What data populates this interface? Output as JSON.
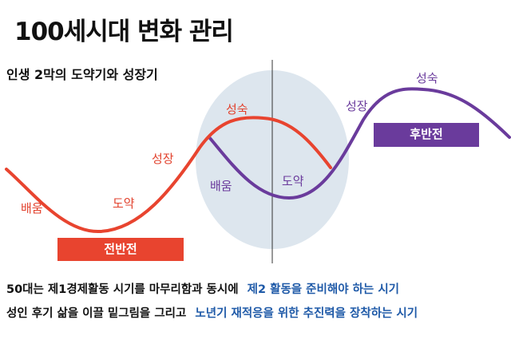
{
  "title": "100세시대 변화 관리",
  "subtitle": "인생 2막의 도약기와 성장기",
  "badges": {
    "early": "전반전",
    "late": "후반전"
  },
  "stages": {
    "red_learning": "배움",
    "red_leap": "도약",
    "red_growth": "성장",
    "red_maturity": "성숙",
    "purple_learning": "배움",
    "purple_leap": "도약",
    "purple_growth": "성장",
    "purple_maturity": "성숙"
  },
  "notes": [
    {
      "text": "50대는 제1경제활동 시기를 마무리함과 동시에",
      "highlight": "제2 활동을 준비해야 하는 시기"
    },
    {
      "text": "성인 후기 삶을 이끌 밑그림을 그리고",
      "highlight": "노년기 재적응을 위한 추진력을 장착하는 시기"
    }
  ],
  "colors": {
    "first_curve": "#e8442f",
    "second_curve": "#6a3b9c",
    "highlight_text": "#1f5aa8",
    "transition_zone": "#dde6ee"
  }
}
